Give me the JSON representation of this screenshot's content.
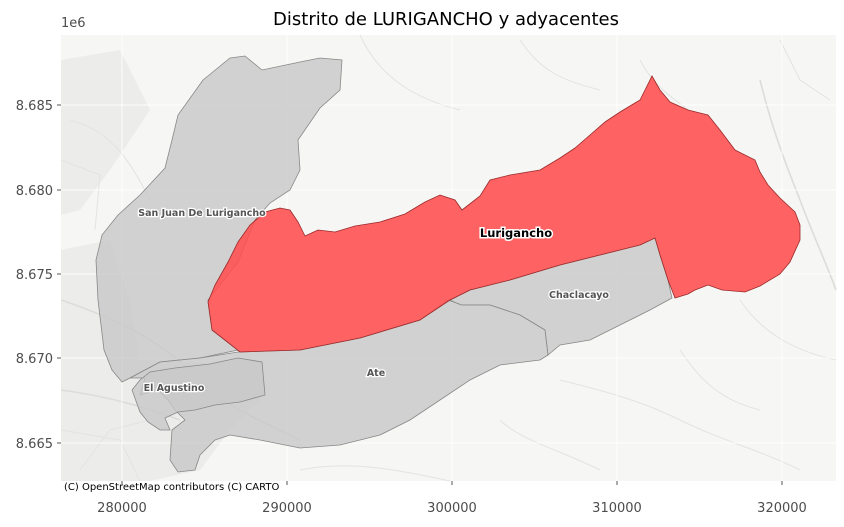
{
  "map": {
    "title": "Distrito de LURIGANCHO y adyacentes",
    "y_offset_label": "1e6",
    "x_ticks": [
      "280000",
      "290000",
      "300000",
      "310000",
      "320000"
    ],
    "y_ticks": [
      "8.685",
      "8.680",
      "8.675",
      "8.670",
      "8.665"
    ],
    "attribution": "(C) OpenStreetMap contributors (C) CARTO",
    "highlight_color": "#ff4d4d",
    "neighbor_color": "#c8c8c8",
    "districts": [
      {
        "name": "Lurigancho",
        "role": "selected"
      },
      {
        "name": "San Juan De Lurigancho",
        "role": "adjacent"
      },
      {
        "name": "Chaclacayo",
        "role": "adjacent"
      },
      {
        "name": "Ate",
        "role": "adjacent"
      },
      {
        "name": "El Agustino",
        "role": "adjacent"
      }
    ]
  }
}
